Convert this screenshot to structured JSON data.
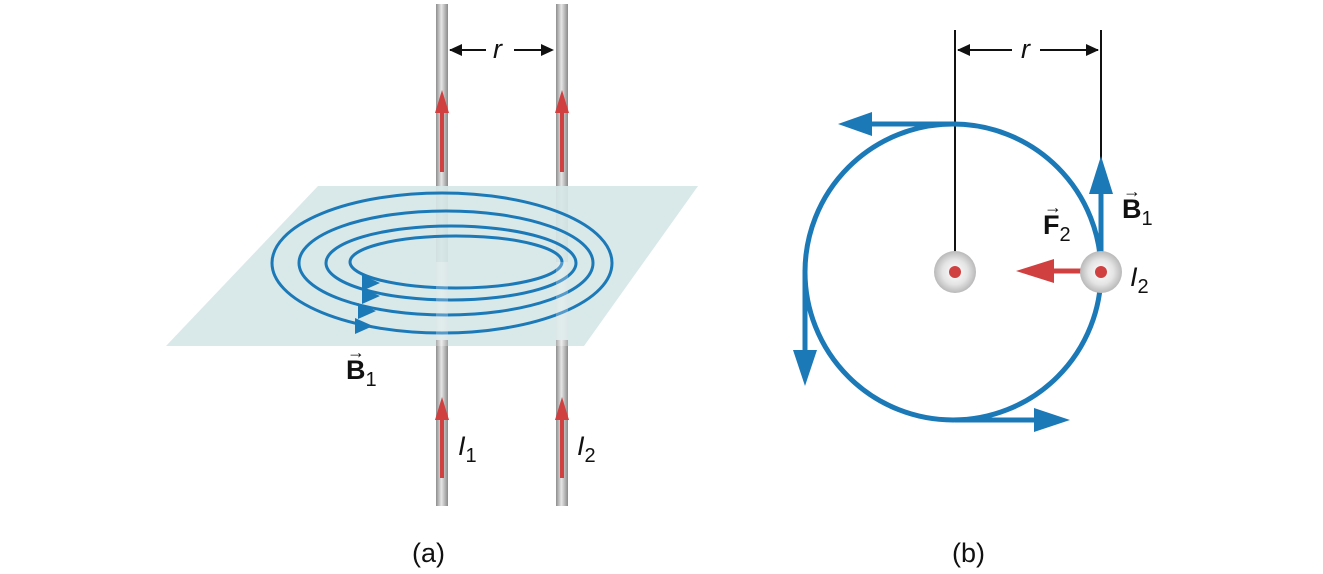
{
  "panel_a": {
    "caption": "(a)",
    "distance_label": "r",
    "field_label": {
      "base": "B",
      "sub": "1"
    },
    "current_1": {
      "base": "I",
      "sub": "1"
    },
    "current_2": {
      "base": "I",
      "sub": "2"
    }
  },
  "panel_b": {
    "caption": "(b)",
    "distance_label": "r",
    "field_label": {
      "base": "B",
      "sub": "1"
    },
    "force_label": {
      "base": "F",
      "sub": "2"
    },
    "current_2": {
      "base": "I",
      "sub": "2"
    }
  },
  "colors": {
    "field_blue": "#1b79b8",
    "current_red": "#d04040",
    "plane": "#d6e6e7",
    "wire": "#b5b5b5"
  }
}
